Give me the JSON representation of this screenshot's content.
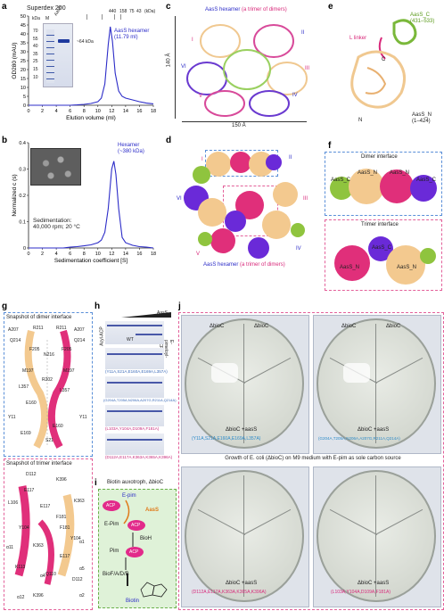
{
  "panels": {
    "a": "a",
    "b": "b",
    "c": "c",
    "d": "d",
    "e": "e",
    "f": "f",
    "g": "g",
    "h": "h",
    "i": "i",
    "j": "j"
  },
  "panel_a": {
    "title": "Superdex 200",
    "gel_kda_label": "kDa",
    "gel_lane_m": "M",
    "gel_lane_aass": "AasS",
    "gel_markers": [
      "70",
      "55",
      "40",
      "35",
      "25",
      "15",
      "10"
    ],
    "band_label": "~64 kDa",
    "peak_label_1": "AasS hexamer",
    "peak_label_2": "(11.79 ml)",
    "std_labels": [
      "440",
      "158",
      "75",
      "43"
    ],
    "std_unit": "(kDa)"
  },
  "panel_b": {
    "peak_label_1": "Hexamer",
    "peak_label_2": "(~380 kDa)",
    "sed_label_1": "Sedimentation:",
    "sed_label_2": "40,000 rpm; 20 °C"
  },
  "panel_c": {
    "title_1": "AasS hexamer",
    "title_2": "(a trimer of dimers)",
    "dim_v": "140 Å",
    "dim_h": "150 Å",
    "roman": [
      "I",
      "II",
      "III",
      "IV",
      "V",
      "VI"
    ]
  },
  "panel_d": {
    "caption_1": "AasS hexamer",
    "caption_2": "(a trimer of dimers)",
    "roman": [
      "I",
      "II",
      "III",
      "IV",
      "V",
      "VI"
    ]
  },
  "panel_e": {
    "aass_c": "AasS_C",
    "aass_c_range": "(431–533)",
    "l_linker": "L linker",
    "aass_n": "AasS_N",
    "aass_n_range": "(1–424)",
    "n_term": "N",
    "c_term": "C"
  },
  "panel_f": {
    "dimer_title": "Dimer interface",
    "trimer_title": "Trimer interface",
    "labels": [
      "AasS_C",
      "AasS_N",
      "AasS_N",
      "AasS_C",
      "AasS_C",
      "AasS_N",
      "AasS_N"
    ]
  },
  "panel_g": {
    "dimer_title": "Snapshot of dimer interface",
    "trimer_title": "Snapshot of trimer interface",
    "dimer_residues": [
      "A207",
      "R211",
      "R211",
      "A207",
      "Q214",
      "Q214",
      "F205",
      "N216",
      "F205",
      "M197",
      "M197",
      "L357",
      "L357",
      "E160",
      "Y11",
      "Y11",
      "E160",
      "E169",
      "S21",
      "R202"
    ],
    "trimer_residues": [
      "D112",
      "K396",
      "E117",
      "L106",
      "E117",
      "K363",
      "F181",
      "Y104",
      "Y104",
      "K363",
      "E117",
      "D112",
      "K396",
      "K113",
      "Q110",
      "F181"
    ],
    "helix_labels": [
      "α1",
      "α2",
      "α4",
      "α5",
      "α11",
      "α12"
    ]
  },
  "panel_h": {
    "aass_label": "AasS",
    "ylabel_left": "Acyl-ACP",
    "ylabel_right": "E-pimeloyl-ACP",
    "rows": [
      "WT",
      "(Y11A,S21A,E160A,E169A,L357A)",
      "(G204A,T205A,N206A,A207G,R211A,Q214A)",
      "(L103A,Y104A,D109A,F181A)",
      "(D112A,E117A,K363A,K365A,K396A)"
    ]
  },
  "panel_i": {
    "title": "Biotin auxotroph, ΔbioC",
    "e_pim": "E-pim",
    "aass": "AasS",
    "acp": "ACP",
    "e_pim2": "E-Pim",
    "bioh": "BioH",
    "pim": "Pim",
    "biof": "BioF/A/D/B",
    "biotin": "Biotin"
  },
  "panel_j": {
    "caption": "Growth of E. coli (ΔbioC) on M9 medium with E-pim as sole carbon source",
    "plates": [
      {
        "top_left": "ΔbioC",
        "top_right": "ΔbioC",
        "bottom": "ΔbioC +aasS",
        "mutant": "(Y11A,S21A,E160A,E169A,L357A)"
      },
      {
        "top_left": "ΔbioC",
        "top_right": "ΔbioC",
        "bottom": "ΔbioC +aasS",
        "mutant": "(G204A,T205A,N206A,A207G,R211A,Q214A)"
      },
      {
        "top_left": "",
        "top_right": "",
        "bottom": "ΔbioC +aasS",
        "mutant": "(D112A,E117A,K363A,K365A,K396A)"
      },
      {
        "top_left": "",
        "top_right": "",
        "bottom": "ΔbioC +aasS",
        "mutant": "(L103A,Y104A,D109A,F181A)"
      }
    ]
  },
  "chart_data": [
    {
      "type": "line",
      "panel": "a",
      "xlabel": "Elution volume (ml)",
      "ylabel": "OD280 (mAU)",
      "xlim": [
        0,
        18
      ],
      "ylim": [
        0,
        50
      ],
      "xticks": [
        0,
        2,
        4,
        6,
        8,
        10,
        12,
        14,
        16,
        18
      ],
      "yticks": [
        0,
        5,
        10,
        15,
        20,
        25,
        30,
        35,
        40,
        45,
        50
      ],
      "x": [
        0,
        2,
        4,
        6,
        7,
        8,
        9,
        10,
        10.5,
        11,
        11.5,
        11.79,
        12.1,
        12.5,
        13,
        13.5,
        14,
        15,
        16,
        17,
        18
      ],
      "y": [
        0,
        0,
        0,
        0,
        0.2,
        0.5,
        1,
        2,
        4,
        12,
        34,
        44,
        36,
        18,
        8,
        5,
        4,
        3,
        2,
        1.2,
        0.8
      ]
    },
    {
      "type": "line",
      "panel": "b",
      "xlabel": "Sedimentation coefficient [S]",
      "ylabel": "Normalized c (s)",
      "xlim": [
        0,
        18
      ],
      "ylim": [
        0,
        0.4
      ],
      "xticks": [
        0,
        2,
        4,
        6,
        8,
        10,
        12,
        14,
        16,
        18
      ],
      "yticks": [
        0,
        0.1,
        0.2,
        0.3,
        0.4
      ],
      "x": [
        0,
        1,
        2,
        3,
        4,
        5,
        6,
        7,
        8,
        9,
        10,
        10.5,
        11,
        11.5,
        12,
        12.3,
        12.6,
        13,
        13.5,
        14,
        15,
        16,
        17,
        18
      ],
      "y": [
        0,
        0,
        0,
        0,
        0,
        0,
        0.003,
        0.005,
        0.008,
        0.012,
        0.02,
        0.03,
        0.06,
        0.15,
        0.3,
        0.33,
        0.28,
        0.15,
        0.04,
        0.02,
        0.01,
        0.005,
        0.003,
        0
      ]
    }
  ]
}
